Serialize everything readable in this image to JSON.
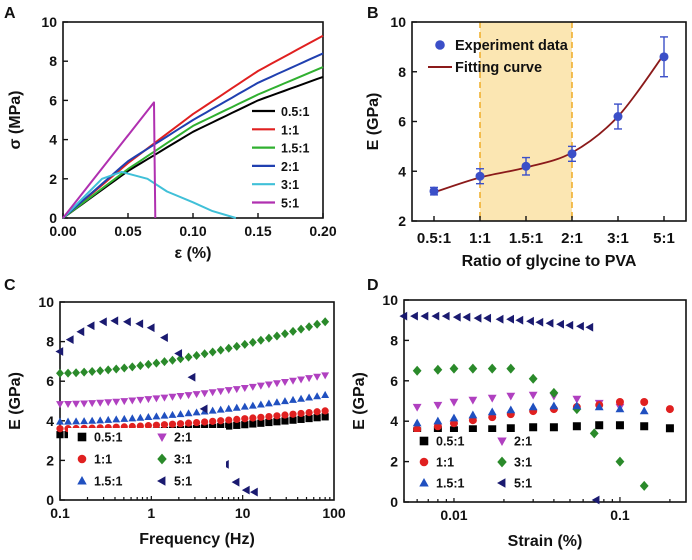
{
  "panels": {
    "A": {
      "label": "A",
      "chart_data": {
        "type": "line",
        "xlabel": "ε  (%)",
        "ylabel": "σ (MPa)",
        "xlim": [
          0,
          0.2
        ],
        "ylim": [
          0,
          10
        ],
        "xticks": [
          "0.00",
          "0.05",
          "0.10",
          "0.15",
          "0.20"
        ],
        "yticks": [
          "0",
          "2",
          "4",
          "6",
          "8",
          "10"
        ],
        "legend_position": "bottom-right",
        "series": [
          {
            "name": "0.5:1",
            "color": "#000000",
            "x": [
              0,
              0.05,
              0.1,
              0.15,
              0.2
            ],
            "y": [
              0,
              2.4,
              4.4,
              6.0,
              7.2
            ]
          },
          {
            "name": "1:1",
            "color": "#e02020",
            "x": [
              0,
              0.05,
              0.1,
              0.15,
              0.2
            ],
            "y": [
              0,
              2.8,
              5.3,
              7.5,
              9.3
            ]
          },
          {
            "name": "1.5:1",
            "color": "#30b030",
            "x": [
              0,
              0.05,
              0.1,
              0.15,
              0.2
            ],
            "y": [
              0,
              2.5,
              4.7,
              6.3,
              7.7
            ]
          },
          {
            "name": "2:1",
            "color": "#2040b0",
            "x": [
              0,
              0.05,
              0.1,
              0.15,
              0.2
            ],
            "y": [
              0,
              2.9,
              5.0,
              6.9,
              8.4
            ]
          },
          {
            "name": "3:1",
            "color": "#40c0d8",
            "x": [
              0,
              0.03,
              0.045,
              0.065,
              0.08,
              0.1,
              0.115,
              0.133
            ],
            "y": [
              0,
              2.0,
              2.35,
              2.0,
              1.35,
              0.8,
              0.35,
              0.0
            ]
          },
          {
            "name": "5:1",
            "color": "#b030b0",
            "x": [
              0,
              0.07,
              0.0705,
              0.071
            ],
            "y": [
              0,
              5.9,
              3.0,
              0.0
            ]
          }
        ]
      }
    },
    "B": {
      "label": "B",
      "chart_data": {
        "type": "scatter",
        "xlabel": "Ratio of glycine to PVA",
        "ylabel": "E (GPa)",
        "categories": [
          "0.5:1",
          "1:1",
          "1.5:1",
          "2:1",
          "3:1",
          "5:1"
        ],
        "ylim": [
          2,
          10
        ],
        "yticks": [
          "2",
          "4",
          "6",
          "8",
          "10"
        ],
        "highlight_region": {
          "from": "1:1",
          "to": "2:1",
          "color": "#fbe6b2"
        },
        "legend_position": "top-left",
        "series": [
          {
            "name": "Experiment data",
            "color": "#3b4fc8",
            "values": [
              3.2,
              3.8,
              4.2,
              4.7,
              6.2,
              8.6
            ],
            "errors": [
              0.15,
              0.3,
              0.35,
              0.3,
              0.5,
              0.8
            ]
          },
          {
            "name": "Fitting curve",
            "color": "#8b1a1a",
            "values": [
              3.15,
              3.75,
              4.15,
              4.75,
              6.2,
              8.7
            ]
          }
        ]
      }
    },
    "C": {
      "label": "C",
      "chart_data": {
        "type": "scatter",
        "xscale": "log",
        "xlabel": "Frequency  (Hz)",
        "ylabel": "E (GPa)",
        "xlim": [
          0.1,
          100
        ],
        "ylim": [
          0,
          10
        ],
        "xticks": [
          "0.1",
          "1",
          "10",
          "100"
        ],
        "yticks": [
          "0",
          "2",
          "4",
          "6",
          "8",
          "10"
        ],
        "legend_position": "bottom-left",
        "series": [
          {
            "name": "0.5:1",
            "marker": "square",
            "color": "#000000",
            "y_start": 3.3,
            "y_end": 4.2,
            "x": [
              0.1,
              80
            ]
          },
          {
            "name": "2:1",
            "marker": "triangle-down",
            "color": "#b040c0",
            "y_start": 4.85,
            "y_end": 6.3,
            "x": [
              0.1,
              80
            ]
          },
          {
            "name": "1:1",
            "marker": "circle",
            "color": "#e02020",
            "y_start": 3.6,
            "y_end": 4.5,
            "x": [
              0.1,
              80
            ]
          },
          {
            "name": "3:1",
            "marker": "diamond",
            "color": "#2a8a2a",
            "y_start": 6.4,
            "y_end": 9.0,
            "x": [
              0.1,
              80
            ]
          },
          {
            "name": "1.5:1",
            "marker": "triangle-up",
            "color": "#2050c0",
            "y_start": 3.95,
            "y_end": 5.3,
            "x": [
              0.1,
              80
            ]
          },
          {
            "name": "5:1",
            "marker": "triangle-left",
            "color": "#1a1a70",
            "x": [
              0.1,
              0.13,
              0.17,
              0.22,
              0.3,
              0.4,
              0.55,
              0.75,
              1.0,
              1.4,
              2.0,
              2.8,
              3.8,
              5.0,
              6.5,
              8.5,
              11.0,
              13.5
            ],
            "y": [
              7.5,
              8.1,
              8.5,
              8.8,
              9.0,
              9.05,
              9.0,
              8.9,
              8.7,
              8.2,
              7.4,
              6.2,
              4.6,
              3.0,
              1.8,
              0.9,
              0.5,
              0.4
            ]
          }
        ]
      }
    },
    "D": {
      "label": "D",
      "chart_data": {
        "type": "scatter",
        "xscale": "log",
        "xlabel": "Strain  (%)",
        "ylabel": "E (GPa)",
        "xlim": [
          0.005,
          0.25
        ],
        "ylim": [
          0,
          10
        ],
        "xticks": [
          "0.01",
          "0.1"
        ],
        "yticks": [
          "0",
          "2",
          "4",
          "6",
          "8",
          "10"
        ],
        "legend_position": "bottom-left",
        "series": [
          {
            "name": "0.5:1",
            "marker": "square",
            "color": "#000000",
            "x": [
              0.006,
              0.008,
              0.01,
              0.013,
              0.017,
              0.022,
              0.03,
              0.04,
              0.055,
              0.075,
              0.1,
              0.14,
              0.2
            ],
            "y": [
              3.5,
              3.55,
              3.55,
              3.6,
              3.6,
              3.65,
              3.7,
              3.7,
              3.75,
              3.8,
              3.8,
              3.75,
              3.65
            ]
          },
          {
            "name": "2:1",
            "marker": "triangle-down",
            "color": "#b040c0",
            "x": [
              0.006,
              0.008,
              0.01,
              0.013,
              0.017,
              0.022,
              0.03,
              0.04,
              0.055,
              0.075,
              0.1
            ],
            "y": [
              4.7,
              4.8,
              4.95,
              5.05,
              5.15,
              5.25,
              5.3,
              5.25,
              5.1,
              4.9,
              4.7
            ]
          },
          {
            "name": "1:1",
            "marker": "circle",
            "color": "#e02020",
            "x": [
              0.006,
              0.008,
              0.01,
              0.013,
              0.017,
              0.022,
              0.03,
              0.04,
              0.055,
              0.075,
              0.1,
              0.14,
              0.2
            ],
            "y": [
              3.6,
              3.75,
              3.9,
              4.05,
              4.2,
              4.35,
              4.5,
              4.6,
              4.7,
              4.8,
              4.95,
              4.95,
              4.6
            ]
          },
          {
            "name": "3:1",
            "marker": "diamond",
            "color": "#2a8a2a",
            "x": [
              0.006,
              0.008,
              0.01,
              0.013,
              0.017,
              0.022,
              0.03,
              0.04,
              0.055,
              0.07,
              0.1,
              0.14
            ],
            "y": [
              6.5,
              6.55,
              6.6,
              6.6,
              6.6,
              6.6,
              6.1,
              5.4,
              4.6,
              3.4,
              2.0,
              0.8
            ]
          },
          {
            "name": "1.5:1",
            "marker": "triangle-up",
            "color": "#2050c0",
            "x": [
              0.006,
              0.008,
              0.01,
              0.013,
              0.017,
              0.022,
              0.03,
              0.04,
              0.055,
              0.075,
              0.1,
              0.14
            ],
            "y": [
              3.9,
              4.0,
              4.15,
              4.3,
              4.45,
              4.55,
              4.7,
              4.75,
              4.75,
              4.7,
              4.6,
              4.5
            ]
          },
          {
            "name": "5:1",
            "marker": "triangle-left",
            "color": "#1a1a70",
            "x": [
              0.005,
              0.0058,
              0.0067,
              0.0078,
              0.009,
              0.0105,
              0.012,
              0.014,
              0.016,
              0.019,
              0.022,
              0.025,
              0.029,
              0.033,
              0.038,
              0.044,
              0.05,
              0.058,
              0.066,
              0.072
            ],
            "y": [
              9.2,
              9.2,
              9.2,
              9.2,
              9.2,
              9.15,
              9.15,
              9.1,
              9.1,
              9.05,
              9.05,
              9.0,
              8.95,
              8.9,
              8.85,
              8.8,
              8.75,
              8.7,
              8.65,
              0.1
            ]
          }
        ]
      }
    }
  }
}
